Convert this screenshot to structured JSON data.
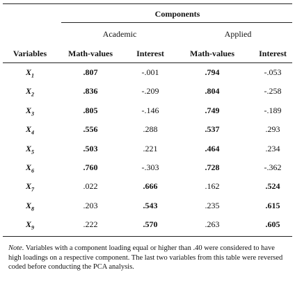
{
  "table": {
    "title": "Components",
    "groups": [
      "Academic",
      "Applied"
    ],
    "headers": [
      "Variables",
      "Math-values",
      "Interest",
      "Math-values",
      "Interest"
    ],
    "rows": [
      {
        "variable": "X",
        "subscript": "1",
        "values": [
          ".807",
          "-.001",
          ".794",
          "-.053"
        ],
        "bold": [
          true,
          false,
          true,
          false
        ]
      },
      {
        "variable": "X",
        "subscript": "2",
        "values": [
          ".836",
          "-.209",
          ".804",
          "-.258"
        ],
        "bold": [
          true,
          false,
          true,
          false
        ]
      },
      {
        "variable": "X",
        "subscript": "3",
        "values": [
          ".805",
          "-.146",
          ".749",
          "-.189"
        ],
        "bold": [
          true,
          false,
          true,
          false
        ]
      },
      {
        "variable": "X",
        "subscript": "4",
        "values": [
          ".556",
          ".288",
          ".537",
          ".293"
        ],
        "bold": [
          true,
          false,
          true,
          false
        ]
      },
      {
        "variable": "X",
        "subscript": "5",
        "values": [
          ".503",
          ".221",
          ".464",
          ".234"
        ],
        "bold": [
          true,
          false,
          true,
          false
        ]
      },
      {
        "variable": "X",
        "subscript": "6",
        "values": [
          ".760",
          "-.303",
          ".728",
          "-.362"
        ],
        "bold": [
          true,
          false,
          true,
          false
        ]
      },
      {
        "variable": "X",
        "subscript": "7",
        "values": [
          ".022",
          ".666",
          ".162",
          ".524"
        ],
        "bold": [
          false,
          true,
          false,
          true
        ]
      },
      {
        "variable": "X",
        "subscript": "8",
        "values": [
          ".203",
          ".543",
          ".235",
          ".615"
        ],
        "bold": [
          false,
          true,
          false,
          true
        ]
      },
      {
        "variable": "X",
        "subscript": "9",
        "values": [
          ".222",
          ".570",
          ".263",
          ".605"
        ],
        "bold": [
          false,
          true,
          false,
          true
        ]
      }
    ],
    "note_label": "Note.",
    "note": "Variables with a component loading equal or higher than .40 were considered to have high loadings on a respective component. The last two variables from this table were reversed coded before conducting the PCA analysis."
  }
}
